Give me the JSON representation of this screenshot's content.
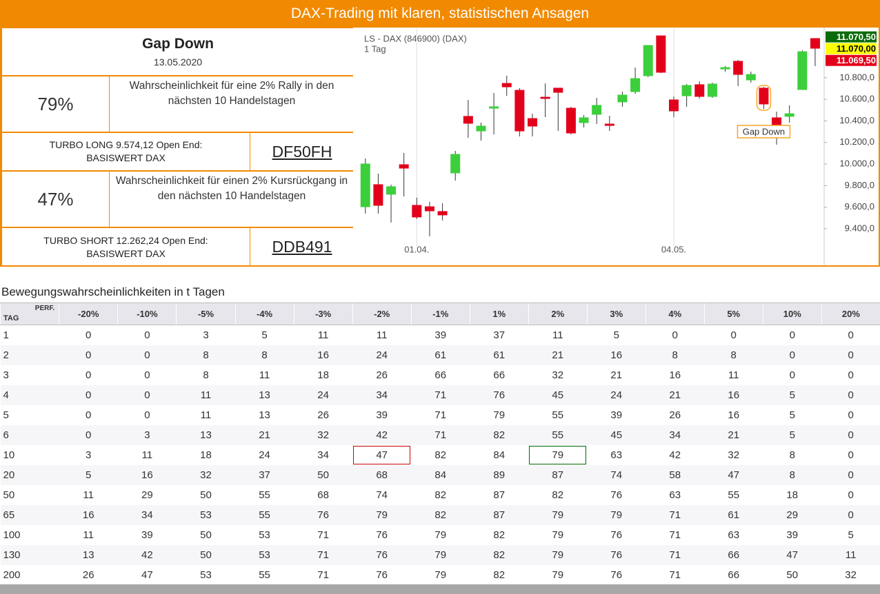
{
  "header": {
    "title": "DAX-Trading mit klaren, statistischen Ansagen"
  },
  "signal": {
    "title": "Gap Down",
    "date": "13.05.2020"
  },
  "long": {
    "probability": "79%",
    "text": "Wahrscheinlichkeit für eine 2% Rally in den nächsten 10 Handelstagen",
    "product_line1": "TURBO LONG 9.574,12 Open End:",
    "product_line2": "BASISWERT DAX",
    "wkn": "DF50FH"
  },
  "short": {
    "probability": "47%",
    "text": "Wahrscheinlichkeit für einen 2% Kursrückgang in den nächsten 10 Handelstagen",
    "product_line1": "TURBO SHORT 12.262,24 Open End:",
    "product_line2": "BASISWERT DAX",
    "wkn": "DDB491"
  },
  "chart_data": {
    "type": "candlestick",
    "title": "LS - DAX (846900) (DAX)",
    "subtitle": "1 Tag",
    "up_color": "#3ccf3c",
    "down_color": "#e3001b",
    "open": [
      9604,
      9809,
      9720,
      9994,
      9617,
      9604,
      9560,
      9918,
      10442,
      10307,
      10518,
      10748,
      10684,
      10422,
      10620,
      10704,
      10518,
      10384,
      10461,
      10371,
      10576,
      10672,
      10819,
      11189,
      10595,
      10633,
      10736,
      10627,
      10882,
      10953,
      10780,
      10704,
      10429,
      10442,
      10691,
      11164
    ],
    "high": [
      10052,
      9911,
      9809,
      10103,
      9688,
      9649,
      9636,
      10122,
      10595,
      10384,
      10659,
      10819,
      10704,
      10467,
      10748,
      10704,
      10531,
      10454,
      10614,
      10448,
      10672,
      10895,
      11100,
      11189,
      10627,
      10742,
      10768,
      10755,
      10908,
      10966,
      10857,
      10716,
      10486,
      10544,
      11055,
      11164
    ],
    "low": [
      9541,
      9541,
      9458,
      9700,
      9490,
      9330,
      9477,
      9847,
      10243,
      10218,
      10275,
      10633,
      10256,
      10256,
      10435,
      10307,
      10275,
      10339,
      10371,
      10307,
      10531,
      10652,
      10806,
      10844,
      10435,
      10531,
      10608,
      10614,
      10857,
      10723,
      10755,
      10512,
      10180,
      10384,
      10691,
      10908
    ],
    "close": [
      10001,
      9617,
      9790,
      9962,
      9509,
      9566,
      9528,
      10090,
      10378,
      10352,
      10531,
      10716,
      10307,
      10352,
      10608,
      10665,
      10288,
      10429,
      10544,
      10358,
      10640,
      10793,
      11100,
      10851,
      10493,
      10729,
      10627,
      10742,
      10895,
      10831,
      10831,
      10557,
      10352,
      10467,
      11042,
      11074
    ],
    "xlim": [
      -0.9,
      35.7
    ],
    "xticks": [
      {
        "value": 4,
        "label": "01.04."
      },
      {
        "value": 24,
        "label": "04.05."
      }
    ],
    "ylim": [
      9061,
      11253
    ],
    "yticks": [
      {
        "value": 9400,
        "label": "9.400,0"
      },
      {
        "value": 9600,
        "label": "9.600,0"
      },
      {
        "value": 9800,
        "label": "9.800,0"
      },
      {
        "value": 10000,
        "label": "10.000,0"
      },
      {
        "value": 10200,
        "label": "10.200,0"
      },
      {
        "value": 10400,
        "label": "10.400,0"
      },
      {
        "value": 10600,
        "label": "10.600,0"
      },
      {
        "value": 10800,
        "label": "10.800,0"
      }
    ],
    "grid": "x",
    "price_tags": [
      {
        "value": 11070.5,
        "label": "11.070,50",
        "color": "#0a6b0a"
      },
      {
        "value": 11070,
        "label": "11.070,00",
        "color": "#ffff00"
      },
      {
        "value": 11069.5,
        "label": "11.069,50",
        "color": "#e3001b"
      }
    ],
    "annotation": {
      "text": "Gap Down",
      "candle": 31
    }
  },
  "table": {
    "title": "Bewegungswahrscheinlichkeiten in t Tagen",
    "corner_top": "PERF.",
    "corner_bottom": "TAG",
    "columns": [
      "-20%",
      "-10%",
      "-5%",
      "-4%",
      "-3%",
      "-2%",
      "-1%",
      "1%",
      "2%",
      "3%",
      "4%",
      "5%",
      "10%",
      "20%"
    ],
    "rows": [
      {
        "tag": 1,
        "values": [
          0,
          0,
          3,
          5,
          11,
          11,
          39,
          37,
          11,
          5,
          0,
          0,
          0,
          0
        ]
      },
      {
        "tag": 2,
        "values": [
          0,
          0,
          8,
          8,
          16,
          24,
          61,
          61,
          21,
          16,
          8,
          8,
          0,
          0
        ]
      },
      {
        "tag": 3,
        "values": [
          0,
          0,
          8,
          11,
          18,
          26,
          66,
          66,
          32,
          21,
          16,
          11,
          0,
          0
        ]
      },
      {
        "tag": 4,
        "values": [
          0,
          0,
          11,
          13,
          24,
          34,
          71,
          76,
          45,
          24,
          21,
          16,
          5,
          0
        ]
      },
      {
        "tag": 5,
        "values": [
          0,
          0,
          11,
          13,
          26,
          39,
          71,
          79,
          55,
          39,
          26,
          16,
          5,
          0
        ]
      },
      {
        "tag": 6,
        "values": [
          0,
          3,
          13,
          21,
          32,
          42,
          71,
          82,
          55,
          45,
          34,
          21,
          5,
          0
        ]
      },
      {
        "tag": 10,
        "values": [
          3,
          11,
          18,
          24,
          34,
          47,
          82,
          84,
          79,
          63,
          42,
          32,
          8,
          0
        ]
      },
      {
        "tag": 20,
        "values": [
          5,
          16,
          32,
          37,
          50,
          68,
          84,
          89,
          87,
          74,
          58,
          47,
          8,
          0
        ]
      },
      {
        "tag": 50,
        "values": [
          11,
          29,
          50,
          55,
          68,
          74,
          82,
          87,
          82,
          76,
          63,
          55,
          18,
          0
        ]
      },
      {
        "tag": 65,
        "values": [
          16,
          34,
          53,
          55,
          76,
          79,
          82,
          87,
          79,
          79,
          71,
          61,
          29,
          0
        ]
      },
      {
        "tag": 100,
        "values": [
          11,
          39,
          50,
          53,
          71,
          76,
          79,
          82,
          79,
          76,
          71,
          63,
          39,
          5
        ]
      },
      {
        "tag": 130,
        "values": [
          13,
          42,
          50,
          53,
          71,
          76,
          79,
          82,
          79,
          76,
          71,
          66,
          47,
          11
        ]
      },
      {
        "tag": 200,
        "values": [
          26,
          47,
          53,
          55,
          71,
          76,
          79,
          82,
          79,
          76,
          71,
          66,
          50,
          32
        ]
      }
    ]
  }
}
